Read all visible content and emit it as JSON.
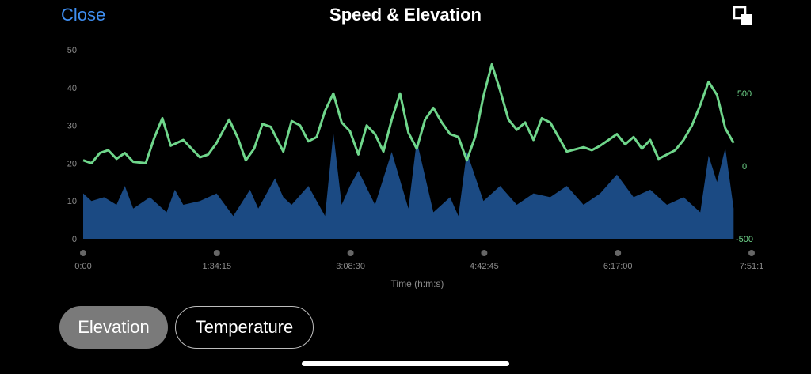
{
  "header": {
    "close_label": "Close",
    "title": "Speed & Elevation",
    "expand_icon": "expand-icon"
  },
  "buttons": {
    "elevation": "Elevation",
    "temperature": "Temperature"
  },
  "colors": {
    "accent": "#3f8ef0",
    "speed_fill": "#1b4a83",
    "elevation_line": "#6fd68b"
  },
  "chart_data": {
    "type": "area",
    "xlabel": "Time (h:m:s)",
    "x_ticks": [
      "0:00",
      "1:34:15",
      "3:08:30",
      "4:42:45",
      "6:17:00",
      "7:51:1"
    ],
    "x_range_hours": [
      0,
      7.854
    ],
    "left_axis": {
      "ticks": [
        0,
        10,
        20,
        30,
        40,
        50
      ],
      "range": [
        0,
        50
      ]
    },
    "right_axis": {
      "ticks": [
        -500,
        0,
        500
      ],
      "range": [
        -500,
        800
      ]
    },
    "series": [
      {
        "axis": "left",
        "fill": true,
        "x": [
          0,
          0.1,
          0.25,
          0.4,
          0.5,
          0.6,
          0.8,
          1.0,
          1.1,
          1.2,
          1.4,
          1.6,
          1.8,
          2.0,
          2.1,
          2.3,
          2.4,
          2.5,
          2.7,
          2.9,
          3.0,
          3.1,
          3.2,
          3.3,
          3.5,
          3.7,
          3.9,
          4.0,
          4.2,
          4.4,
          4.5,
          4.6,
          4.8,
          5.0,
          5.2,
          5.4,
          5.6,
          5.8,
          6.0,
          6.2,
          6.4,
          6.6,
          6.8,
          7.0,
          7.2,
          7.4,
          7.5,
          7.6,
          7.7,
          7.8
        ],
        "values": [
          12,
          10,
          11,
          9,
          14,
          8,
          11,
          7,
          13,
          9,
          10,
          12,
          6,
          13,
          8,
          16,
          11,
          9,
          14,
          6,
          28,
          9,
          14,
          18,
          9,
          23,
          8,
          26,
          7,
          11,
          6,
          23,
          10,
          14,
          9,
          12,
          11,
          14,
          9,
          12,
          17,
          11,
          13,
          9,
          11,
          7,
          22,
          15,
          24,
          8
        ]
      },
      {
        "axis": "right",
        "fill": false,
        "x": [
          0,
          0.1,
          0.2,
          0.3,
          0.4,
          0.5,
          0.6,
          0.75,
          0.85,
          0.95,
          1.05,
          1.2,
          1.3,
          1.4,
          1.5,
          1.6,
          1.75,
          1.85,
          1.95,
          2.05,
          2.15,
          2.25,
          2.4,
          2.5,
          2.6,
          2.7,
          2.8,
          2.9,
          3.0,
          3.1,
          3.2,
          3.3,
          3.4,
          3.5,
          3.6,
          3.7,
          3.8,
          3.9,
          4.0,
          4.1,
          4.2,
          4.3,
          4.4,
          4.5,
          4.6,
          4.7,
          4.8,
          4.9,
          5.0,
          5.1,
          5.2,
          5.3,
          5.4,
          5.5,
          5.6,
          5.8,
          6.0,
          6.1,
          6.2,
          6.3,
          6.4,
          6.5,
          6.6,
          6.7,
          6.8,
          6.9,
          7.0,
          7.1,
          7.2,
          7.3,
          7.4,
          7.5,
          7.6,
          7.7,
          7.8
        ],
        "values": [
          40,
          20,
          90,
          110,
          50,
          90,
          30,
          20,
          190,
          330,
          140,
          180,
          120,
          60,
          80,
          160,
          320,
          200,
          40,
          120,
          290,
          270,
          100,
          310,
          280,
          170,
          200,
          380,
          500,
          300,
          240,
          80,
          280,
          220,
          100,
          320,
          500,
          230,
          120,
          320,
          400,
          300,
          220,
          200,
          40,
          200,
          480,
          700,
          520,
          320,
          250,
          300,
          180,
          330,
          300,
          100,
          130,
          110,
          140,
          180,
          220,
          150,
          200,
          120,
          180,
          50,
          80,
          110,
          180,
          280,
          420,
          580,
          490,
          260,
          160
        ]
      }
    ]
  }
}
